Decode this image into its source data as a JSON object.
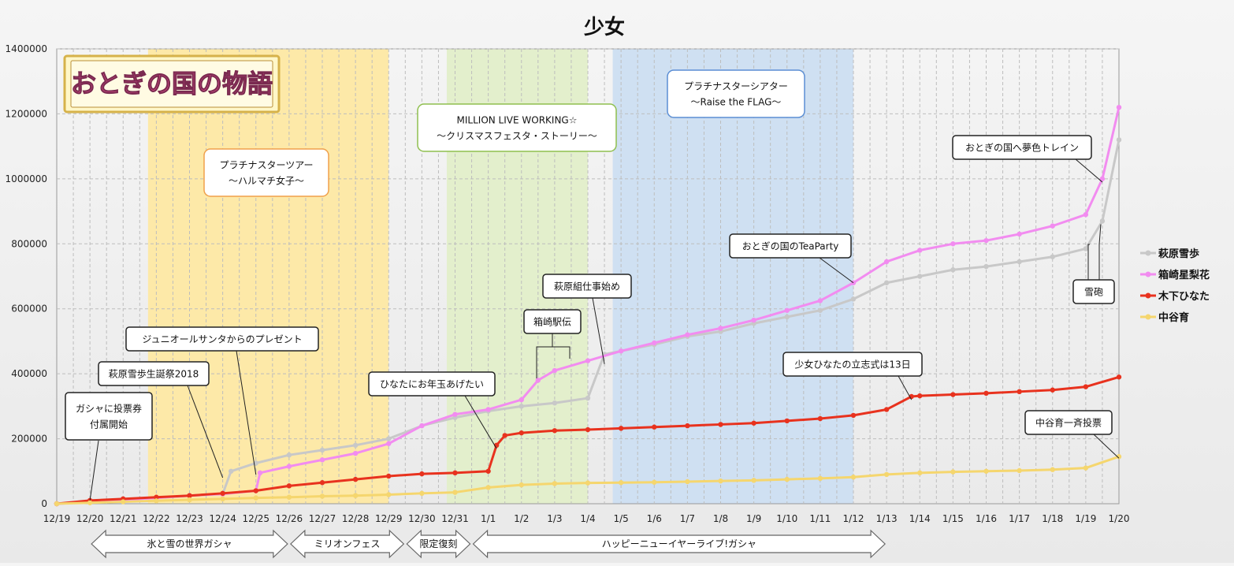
{
  "chart_data": {
    "type": "line",
    "title": "少女",
    "ylim": [
      0,
      1400000
    ],
    "yticks": [
      "0",
      "200000",
      "400000",
      "600000",
      "800000",
      "1000000",
      "1200000",
      "1400000"
    ],
    "x_dates": [
      "12/19",
      "12/20",
      "12/21",
      "12/22",
      "12/23",
      "12/24",
      "12/25",
      "12/26",
      "12/27",
      "12/28",
      "12/29",
      "12/30",
      "12/31",
      "1/1",
      "1/2",
      "1/3",
      "1/4",
      "1/5",
      "1/6",
      "1/7",
      "1/8",
      "1/9",
      "1/10",
      "1/11",
      "1/12",
      "1/13",
      "1/14",
      "1/15",
      "1/16",
      "1/17",
      "1/18",
      "1/19",
      "1/20"
    ],
    "grid": true,
    "legend_position": "right",
    "logo_text": "おとぎの国の物語",
    "series": [
      {
        "name": "萩原雪歩",
        "color": "#c8c8c8",
        "points": [
          [
            "12/19",
            0
          ],
          [
            "12/20",
            5000
          ],
          [
            "12/21",
            12000
          ],
          [
            "12/22",
            18000
          ],
          [
            "12/23",
            25000
          ],
          [
            "12/24",
            30000
          ],
          [
            "12/24 06",
            100000
          ],
          [
            "12/25",
            125000
          ],
          [
            "12/26",
            150000
          ],
          [
            "12/27",
            165000
          ],
          [
            "12/28",
            180000
          ],
          [
            "12/29",
            200000
          ],
          [
            "12/30",
            240000
          ],
          [
            "12/31",
            265000
          ],
          [
            "1/1",
            285000
          ],
          [
            "1/2",
            300000
          ],
          [
            "1/3",
            310000
          ],
          [
            "1/4",
            325000
          ],
          [
            "1/4 12",
            460000
          ],
          [
            "1/5",
            470000
          ],
          [
            "1/6",
            490000
          ],
          [
            "1/7",
            515000
          ],
          [
            "1/8",
            530000
          ],
          [
            "1/9",
            555000
          ],
          [
            "1/10",
            575000
          ],
          [
            "1/11",
            595000
          ],
          [
            "1/12",
            630000
          ],
          [
            "1/13",
            680000
          ],
          [
            "1/14",
            700000
          ],
          [
            "1/15",
            720000
          ],
          [
            "1/16",
            730000
          ],
          [
            "1/17",
            745000
          ],
          [
            "1/18",
            760000
          ],
          [
            "1/19",
            785000
          ],
          [
            "1/19 12",
            870000
          ],
          [
            "1/20",
            1120000
          ]
        ]
      },
      {
        "name": "箱崎星梨花",
        "color": "#f28cf0",
        "points": [
          [
            "12/19",
            0
          ],
          [
            "12/20",
            5000
          ],
          [
            "12/21",
            12000
          ],
          [
            "12/22",
            18000
          ],
          [
            "12/23",
            25000
          ],
          [
            "12/24",
            30000
          ],
          [
            "12/25",
            40000
          ],
          [
            "12/25 03",
            95000
          ],
          [
            "12/26",
            115000
          ],
          [
            "12/27",
            135000
          ],
          [
            "12/28",
            155000
          ],
          [
            "12/29",
            185000
          ],
          [
            "12/30",
            240000
          ],
          [
            "12/31",
            275000
          ],
          [
            "1/1",
            290000
          ],
          [
            "1/2",
            320000
          ],
          [
            "1/2 12",
            380000
          ],
          [
            "1/3",
            410000
          ],
          [
            "1/4",
            440000
          ],
          [
            "1/5",
            470000
          ],
          [
            "1/6",
            495000
          ],
          [
            "1/7",
            520000
          ],
          [
            "1/8",
            540000
          ],
          [
            "1/9",
            565000
          ],
          [
            "1/10",
            595000
          ],
          [
            "1/11",
            625000
          ],
          [
            "1/12",
            680000
          ],
          [
            "1/13",
            745000
          ],
          [
            "1/14",
            780000
          ],
          [
            "1/15",
            800000
          ],
          [
            "1/16",
            810000
          ],
          [
            "1/17",
            830000
          ],
          [
            "1/18",
            855000
          ],
          [
            "1/19",
            890000
          ],
          [
            "1/19 12",
            1000000
          ],
          [
            "1/20",
            1220000
          ]
        ]
      },
      {
        "name": "木下ひなた",
        "color": "#e8321e",
        "points": [
          [
            "12/19",
            0
          ],
          [
            "12/20",
            10000
          ],
          [
            "12/21",
            15000
          ],
          [
            "12/22",
            20000
          ],
          [
            "12/23",
            25000
          ],
          [
            "12/24",
            32000
          ],
          [
            "12/25",
            40000
          ],
          [
            "12/26",
            55000
          ],
          [
            "12/27",
            65000
          ],
          [
            "12/28",
            75000
          ],
          [
            "12/29",
            85000
          ],
          [
            "12/30",
            92000
          ],
          [
            "12/31",
            95000
          ],
          [
            "1/1",
            100000
          ],
          [
            "1/1 06",
            180000
          ],
          [
            "1/1 12",
            210000
          ],
          [
            "1/2",
            218000
          ],
          [
            "1/3",
            225000
          ],
          [
            "1/4",
            228000
          ],
          [
            "1/5",
            232000
          ],
          [
            "1/6",
            236000
          ],
          [
            "1/7",
            240000
          ],
          [
            "1/8",
            244000
          ],
          [
            "1/9",
            248000
          ],
          [
            "1/10",
            255000
          ],
          [
            "1/11",
            262000
          ],
          [
            "1/12",
            272000
          ],
          [
            "1/13",
            290000
          ],
          [
            "1/13 18",
            330000
          ],
          [
            "1/14",
            332000
          ],
          [
            "1/15",
            336000
          ],
          [
            "1/16",
            340000
          ],
          [
            "1/17",
            345000
          ],
          [
            "1/18",
            350000
          ],
          [
            "1/19",
            360000
          ],
          [
            "1/20",
            390000
          ]
        ]
      },
      {
        "name": "中谷育",
        "color": "#f5d66e",
        "points": [
          [
            "12/19",
            0
          ],
          [
            "12/20",
            3000
          ],
          [
            "12/21",
            6000
          ],
          [
            "12/22",
            9000
          ],
          [
            "12/23",
            12000
          ],
          [
            "12/24",
            15000
          ],
          [
            "12/25",
            18000
          ],
          [
            "12/26",
            20000
          ],
          [
            "12/27",
            23000
          ],
          [
            "12/28",
            25000
          ],
          [
            "12/29",
            28000
          ],
          [
            "12/30",
            32000
          ],
          [
            "12/31",
            35000
          ],
          [
            "1/1",
            50000
          ],
          [
            "1/2",
            58000
          ],
          [
            "1/3",
            62000
          ],
          [
            "1/4",
            64000
          ],
          [
            "1/5",
            65000
          ],
          [
            "1/6",
            66000
          ],
          [
            "1/7",
            68000
          ],
          [
            "1/8",
            70000
          ],
          [
            "1/9",
            72000
          ],
          [
            "1/10",
            75000
          ],
          [
            "1/11",
            78000
          ],
          [
            "1/12",
            82000
          ],
          [
            "1/13",
            90000
          ],
          [
            "1/14",
            95000
          ],
          [
            "1/15",
            98000
          ],
          [
            "1/16",
            100000
          ],
          [
            "1/17",
            102000
          ],
          [
            "1/18",
            105000
          ],
          [
            "1/19",
            110000
          ],
          [
            "1/20",
            145000
          ]
        ]
      }
    ],
    "bands": [
      {
        "from": "12/21 18",
        "to": "12/29",
        "color": "#fde9a8"
      },
      {
        "from": "12/30 18",
        "to": "1/3 24",
        "color": "#e3efcc"
      },
      {
        "from": "1/4 18",
        "to": "1/11 24",
        "color": "#cfe0f2"
      }
    ],
    "event_labels": [
      {
        "lines": [
          "プラチナスターツアー",
          "〜ハルマチ女子〜"
        ],
        "border": "#f0a04b"
      },
      {
        "lines": [
          "MILLION LIVE WORKING☆",
          "〜クリスマスフェスタ・ストーリー〜"
        ],
        "border": "#8fbf4f"
      },
      {
        "lines": [
          "プラチナスターシアター",
          "〜Raise the FLAG〜"
        ],
        "border": "#5b8ed4"
      }
    ],
    "annotations": [
      {
        "lines": [
          "ガシャに投票券",
          "付属開始"
        ],
        "target": [
          "12/20",
          10000
        ]
      },
      {
        "lines": [
          "萩原雪歩生誕祭2018"
        ],
        "target": [
          "12/24",
          80000
        ]
      },
      {
        "lines": [
          "ジュニオールサンタからのプレゼント"
        ],
        "target": [
          "12/25",
          90000
        ]
      },
      {
        "lines": [
          "ひなたにお年玉あげたい"
        ],
        "target": [
          "1/1 06",
          170000
        ]
      },
      {
        "lines": [
          "箱崎駅伝"
        ],
        "target": [
          "1/2 12",
          375000
        ]
      },
      {
        "lines": [
          "萩原組仕事始め"
        ],
        "target": [
          "1/4 12",
          430000
        ]
      },
      {
        "lines": [
          "おとぎの国のTeaParty"
        ],
        "target": [
          "1/12",
          680000
        ]
      },
      {
        "lines": [
          "少女ひなたの立志式は13日"
        ],
        "target": [
          "1/13 18",
          320000
        ]
      },
      {
        "lines": [
          "おとぎの国へ夢色トレイン"
        ],
        "target": [
          "1/19 12",
          990000
        ]
      },
      {
        "lines": [
          "雪砲"
        ],
        "target": [
          "1/19 12",
          860000
        ]
      },
      {
        "lines": [
          "中谷育一斉投票"
        ],
        "target": [
          "1/20",
          140000
        ]
      }
    ],
    "periods": [
      {
        "label": "氷と雪の世界ガシャ",
        "from": "12/20",
        "to": "12/26"
      },
      {
        "label": "ミリオンフェス",
        "from": "12/26",
        "to": "12/29 12"
      },
      {
        "label": "限定復刻",
        "from": "12/29 12",
        "to": "12/31 12"
      },
      {
        "label": "ハッピーニューイヤーライブ!ガシャ",
        "from": "12/31 12",
        "to": "1/13"
      }
    ]
  }
}
